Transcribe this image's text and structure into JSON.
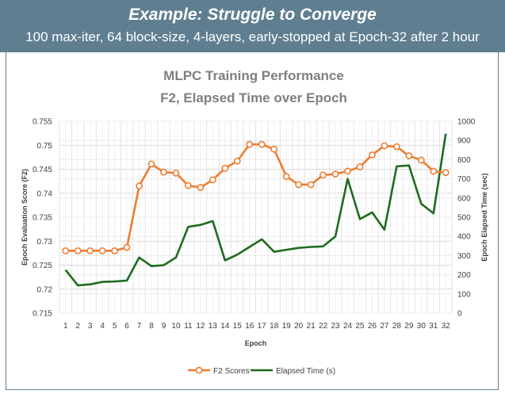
{
  "banner": {
    "title": "Example: Struggle to Converge",
    "subtitle": "100 max-iter, 64 block-size, 4-layers, early-stopped at Epoch-32 after 2 hour"
  },
  "colors": {
    "banner_bg": "#5f7f91",
    "f2_series": "#ed7d31",
    "time_series": "#1e6b1e"
  },
  "chart_data": {
    "type": "line",
    "title_lines": [
      "MLPC Training Performance",
      "F2, Elapsed Time over Epoch"
    ],
    "xlabel": "Epoch",
    "ylabel_left": "Epoch Evaluation Score (F2)",
    "ylabel_right": "Epoch Elapsed Time (sec)",
    "x": [
      1,
      2,
      3,
      4,
      5,
      6,
      7,
      8,
      9,
      10,
      11,
      12,
      13,
      14,
      15,
      16,
      17,
      18,
      19,
      20,
      21,
      22,
      23,
      24,
      25,
      26,
      27,
      28,
      29,
      30,
      31,
      32
    ],
    "y_left_lim": [
      0.715,
      0.755
    ],
    "y_left_ticks": [
      "0.715",
      "0.72",
      "0.725",
      "0.73",
      "0.735",
      "0.74",
      "0.745",
      "0.75",
      "0.755"
    ],
    "y_right_lim": [
      0,
      1000
    ],
    "y_right_ticks": [
      "0",
      "100",
      "200",
      "300",
      "400",
      "500",
      "600",
      "700",
      "800",
      "900",
      "1000"
    ],
    "grid": true,
    "legend_position": "bottom",
    "series": [
      {
        "name": "F2 Scores",
        "axis": "left",
        "marker": "circle",
        "values": [
          0.728,
          0.728,
          0.728,
          0.728,
          0.728,
          0.7287,
          0.7415,
          0.7461,
          0.7444,
          0.7442,
          0.7416,
          0.7412,
          0.7428,
          0.7452,
          0.7467,
          0.7502,
          0.7502,
          0.7492,
          0.7435,
          0.7418,
          0.7418,
          0.7438,
          0.744,
          0.7446,
          0.7455,
          0.748,
          0.7499,
          0.7497,
          0.7478,
          0.7469,
          0.7446,
          0.7443
        ]
      },
      {
        "name": "Elapsed Time (s)",
        "axis": "right",
        "marker": "none",
        "values": [
          225,
          145,
          150,
          163,
          165,
          170,
          290,
          245,
          250,
          290,
          450,
          460,
          480,
          275,
          305,
          345,
          385,
          320,
          330,
          340,
          345,
          348,
          400,
          700,
          490,
          525,
          435,
          765,
          770,
          570,
          520,
          935
        ]
      }
    ]
  }
}
